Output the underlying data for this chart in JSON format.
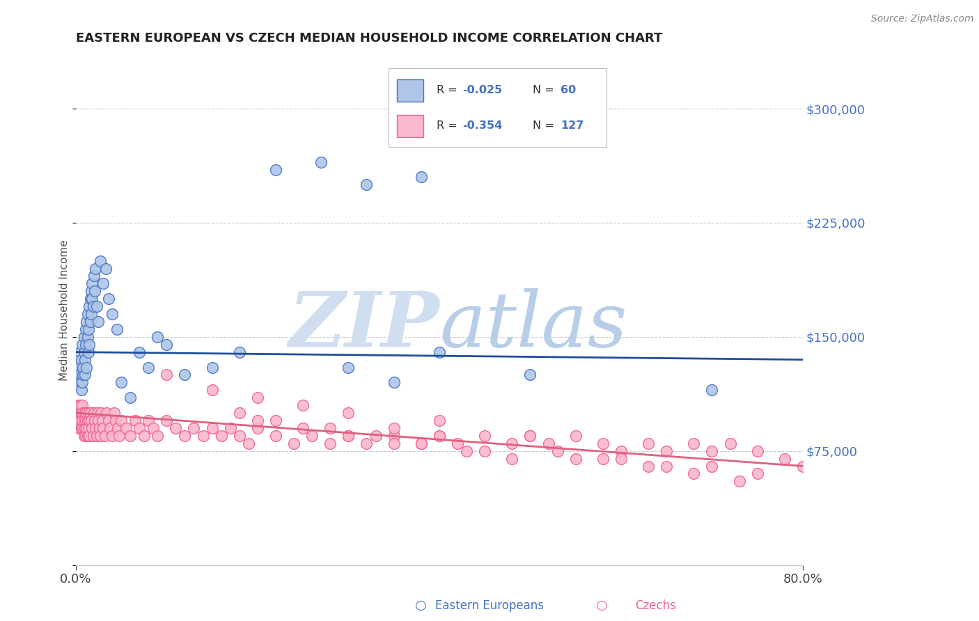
{
  "title": "EASTERN EUROPEAN VS CZECH MEDIAN HOUSEHOLD INCOME CORRELATION CHART",
  "source": "Source: ZipAtlas.com",
  "ylabel": "Median Household Income",
  "yticks": [
    0,
    75000,
    150000,
    225000,
    300000
  ],
  "xmin": 0.0,
  "xmax": 0.8,
  "ymin": 0,
  "ymax": 335000,
  "legend_r1": "R = -0.025",
  "legend_n1": "N =  60",
  "legend_r2": "R = -0.354",
  "legend_n2": "N = 127",
  "color_blue": "#4472C4",
  "color_blue_light": "#AEC6E8",
  "color_pink": "#F06090",
  "color_pink_light": "#F9B8CC",
  "color_trendline_blue": "#1F4E99",
  "color_trendline_pink": "#E06080",
  "blue_scatter_x": [
    0.003,
    0.004,
    0.005,
    0.005,
    0.006,
    0.006,
    0.007,
    0.007,
    0.008,
    0.008,
    0.009,
    0.009,
    0.01,
    0.01,
    0.011,
    0.011,
    0.012,
    0.012,
    0.013,
    0.013,
    0.014,
    0.014,
    0.015,
    0.015,
    0.016,
    0.016,
    0.017,
    0.017,
    0.018,
    0.018,
    0.019,
    0.02,
    0.021,
    0.022,
    0.023,
    0.025,
    0.027,
    0.03,
    0.033,
    0.036,
    0.04,
    0.045,
    0.05,
    0.06,
    0.07,
    0.08,
    0.09,
    0.1,
    0.12,
    0.15,
    0.18,
    0.22,
    0.27,
    0.32,
    0.38,
    0.7,
    0.3,
    0.35,
    0.4,
    0.5
  ],
  "blue_scatter_y": [
    130000,
    125000,
    120000,
    140000,
    115000,
    135000,
    120000,
    145000,
    125000,
    130000,
    140000,
    150000,
    135000,
    125000,
    155000,
    145000,
    160000,
    130000,
    150000,
    165000,
    140000,
    155000,
    170000,
    145000,
    175000,
    160000,
    180000,
    165000,
    175000,
    185000,
    170000,
    190000,
    180000,
    195000,
    170000,
    160000,
    200000,
    185000,
    195000,
    175000,
    165000,
    155000,
    120000,
    110000,
    140000,
    130000,
    150000,
    145000,
    125000,
    130000,
    140000,
    260000,
    265000,
    250000,
    255000,
    115000,
    130000,
    120000,
    140000,
    125000
  ],
  "pink_scatter_x": [
    0.002,
    0.003,
    0.003,
    0.004,
    0.004,
    0.005,
    0.005,
    0.006,
    0.006,
    0.007,
    0.007,
    0.008,
    0.008,
    0.009,
    0.009,
    0.01,
    0.01,
    0.011,
    0.011,
    0.012,
    0.012,
    0.013,
    0.013,
    0.014,
    0.014,
    0.015,
    0.015,
    0.016,
    0.017,
    0.018,
    0.019,
    0.02,
    0.021,
    0.022,
    0.023,
    0.024,
    0.025,
    0.026,
    0.027,
    0.028,
    0.029,
    0.03,
    0.032,
    0.034,
    0.036,
    0.038,
    0.04,
    0.042,
    0.044,
    0.046,
    0.048,
    0.05,
    0.055,
    0.06,
    0.065,
    0.07,
    0.075,
    0.08,
    0.085,
    0.09,
    0.1,
    0.11,
    0.12,
    0.13,
    0.14,
    0.15,
    0.16,
    0.17,
    0.18,
    0.19,
    0.2,
    0.22,
    0.24,
    0.26,
    0.28,
    0.3,
    0.32,
    0.35,
    0.38,
    0.4,
    0.42,
    0.45,
    0.48,
    0.5,
    0.52,
    0.55,
    0.58,
    0.6,
    0.63,
    0.65,
    0.68,
    0.7,
    0.72,
    0.75,
    0.78,
    0.8,
    0.25,
    0.3,
    0.35,
    0.4,
    0.22,
    0.18,
    0.15,
    0.2,
    0.28,
    0.33,
    0.38,
    0.43,
    0.48,
    0.53,
    0.58,
    0.63,
    0.68,
    0.73,
    0.35,
    0.45,
    0.55,
    0.65,
    0.75,
    0.2,
    0.25,
    0.3,
    0.4,
    0.5,
    0.6,
    0.7,
    0.1
  ],
  "pink_scatter_y": [
    100000,
    95000,
    105000,
    90000,
    100000,
    95000,
    105000,
    90000,
    100000,
    95000,
    105000,
    90000,
    100000,
    95000,
    85000,
    100000,
    90000,
    95000,
    85000,
    100000,
    90000,
    95000,
    85000,
    100000,
    90000,
    95000,
    85000,
    100000,
    95000,
    90000,
    85000,
    100000,
    95000,
    90000,
    85000,
    100000,
    95000,
    90000,
    85000,
    100000,
    95000,
    90000,
    85000,
    100000,
    95000,
    90000,
    85000,
    100000,
    95000,
    90000,
    85000,
    95000,
    90000,
    85000,
    95000,
    90000,
    85000,
    95000,
    90000,
    85000,
    95000,
    90000,
    85000,
    90000,
    85000,
    90000,
    85000,
    90000,
    85000,
    80000,
    90000,
    85000,
    80000,
    85000,
    80000,
    85000,
    80000,
    85000,
    80000,
    85000,
    80000,
    85000,
    80000,
    85000,
    80000,
    85000,
    80000,
    75000,
    80000,
    75000,
    80000,
    75000,
    80000,
    75000,
    70000,
    65000,
    90000,
    85000,
    80000,
    85000,
    95000,
    100000,
    115000,
    95000,
    90000,
    85000,
    80000,
    75000,
    70000,
    75000,
    70000,
    65000,
    60000,
    55000,
    90000,
    75000,
    70000,
    65000,
    60000,
    110000,
    105000,
    100000,
    95000,
    85000,
    70000,
    65000,
    125000
  ]
}
